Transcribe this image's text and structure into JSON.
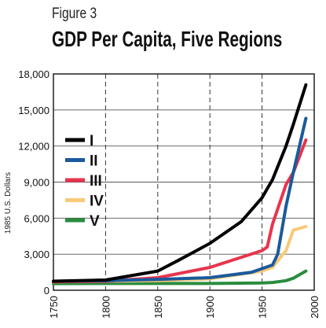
{
  "figure_label": "Figure 3",
  "chart_data": {
    "type": "line",
    "title": "GDP Per Capita, Five Regions",
    "xlabel": "",
    "ylabel": "1985 U.S. Dollars",
    "xlim": [
      1750,
      2000
    ],
    "ylim": [
      0,
      18000
    ],
    "x_ticks": [
      1750,
      1800,
      1850,
      1900,
      1950,
      2000
    ],
    "y_ticks": [
      0,
      3000,
      6000,
      9000,
      12000,
      15000,
      18000
    ],
    "y_tick_labels": [
      "0",
      "3,000",
      "6,000",
      "9,000",
      "12,000",
      "15,000",
      "18,000"
    ],
    "grid": {
      "vertical": "dashed",
      "horizontal": "solid"
    },
    "legend_position": "left",
    "series": [
      {
        "name": "I",
        "color": "#000000",
        "points": [
          [
            1750,
            750
          ],
          [
            1800,
            850
          ],
          [
            1850,
            1600
          ],
          [
            1870,
            2500
          ],
          [
            1900,
            3900
          ],
          [
            1930,
            5700
          ],
          [
            1950,
            7700
          ],
          [
            1960,
            9200
          ],
          [
            1973,
            12000
          ],
          [
            1980,
            13800
          ],
          [
            1992,
            17100
          ]
        ]
      },
      {
        "name": "II",
        "color": "#1a5a9c",
        "points": [
          [
            1750,
            750
          ],
          [
            1800,
            800
          ],
          [
            1850,
            900
          ],
          [
            1900,
            1050
          ],
          [
            1940,
            1500
          ],
          [
            1960,
            2100
          ],
          [
            1965,
            3000
          ],
          [
            1973,
            7000
          ],
          [
            1980,
            9800
          ],
          [
            1992,
            14300
          ]
        ]
      },
      {
        "name": "III",
        "color": "#e8344d",
        "points": [
          [
            1750,
            700
          ],
          [
            1800,
            750
          ],
          [
            1850,
            1050
          ],
          [
            1900,
            1900
          ],
          [
            1950,
            3300
          ],
          [
            1955,
            3600
          ],
          [
            1960,
            5500
          ],
          [
            1973,
            8800
          ],
          [
            1980,
            9800
          ],
          [
            1992,
            12500
          ]
        ]
      },
      {
        "name": "IV",
        "color": "#f9c978",
        "points": [
          [
            1750,
            700
          ],
          [
            1800,
            750
          ],
          [
            1850,
            800
          ],
          [
            1900,
            950
          ],
          [
            1950,
            1600
          ],
          [
            1960,
            1900
          ],
          [
            1973,
            3300
          ],
          [
            1980,
            5000
          ],
          [
            1992,
            5300
          ]
        ]
      },
      {
        "name": "V",
        "color": "#2a8c3f",
        "points": [
          [
            1750,
            550
          ],
          [
            1800,
            560
          ],
          [
            1850,
            560
          ],
          [
            1900,
            560
          ],
          [
            1950,
            600
          ],
          [
            1960,
            650
          ],
          [
            1973,
            800
          ],
          [
            1980,
            1000
          ],
          [
            1992,
            1600
          ]
        ]
      }
    ]
  }
}
